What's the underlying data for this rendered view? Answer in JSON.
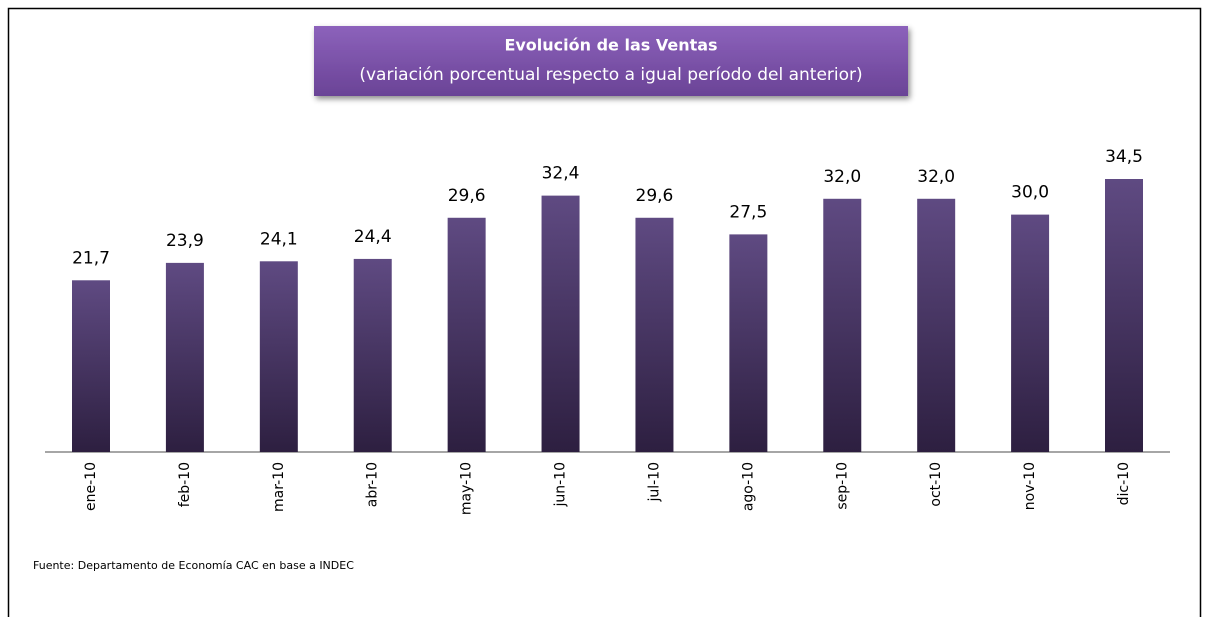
{
  "chart_data": {
    "type": "bar",
    "title": "Evolución de las Ventas",
    "subtitle": "(variación porcentual respecto a igual período del anterior)",
    "categories": [
      "ene-10",
      "feb-10",
      "mar-10",
      "abr-10",
      "may-10",
      "jun-10",
      "jul-10",
      "ago-10",
      "sep-10",
      "oct-10",
      "nov-10",
      "dic-10"
    ],
    "values": [
      21.7,
      23.9,
      24.1,
      24.4,
      29.6,
      32.4,
      29.6,
      27.5,
      32.0,
      32.0,
      30.0,
      34.5
    ],
    "value_labels": [
      "21,7",
      "23,9",
      "24,1",
      "24,4",
      "29,6",
      "32,4",
      "29,6",
      "27,5",
      "32,0",
      "32,0",
      "30,0",
      "34,5"
    ],
    "color": "#4e3b6c",
    "source": "Fuente: Departamento de Economía CAC en base a INDEC"
  }
}
